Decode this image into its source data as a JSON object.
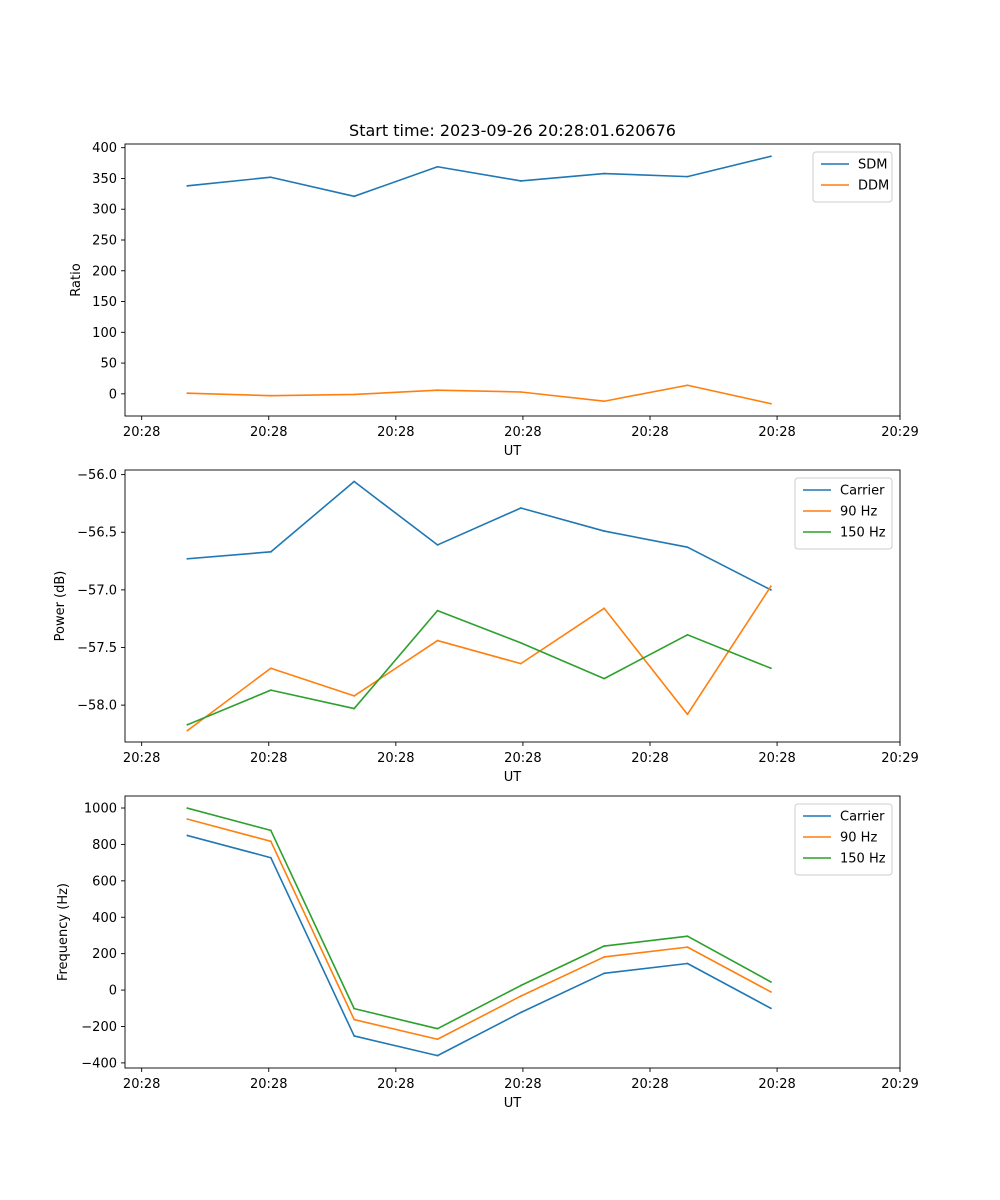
{
  "figure_title": "Start time: 2023-09-26 20:28:01.620676",
  "chart_data": [
    {
      "type": "line",
      "title": "Start time: 2023-09-26 20:28:01.620676",
      "xlabel": "UT",
      "ylabel": "Ratio",
      "x": [
        1,
        2,
        3,
        4,
        5,
        6,
        7,
        8
      ],
      "xlim": [
        0.25,
        9.55
      ],
      "xticks": [
        0.45,
        1.975,
        3.5,
        5.025,
        6.55,
        8.075,
        9.55
      ],
      "xtick_labels": [
        "20:28",
        "20:28",
        "20:28",
        "20:28",
        "20:28",
        "20:28",
        "20:29"
      ],
      "ylim": [
        -36,
        406
      ],
      "yticks": [
        0,
        50,
        100,
        150,
        200,
        250,
        300,
        350,
        400
      ],
      "ytick_labels": [
        "0",
        "50",
        "100",
        "150",
        "200",
        "250",
        "300",
        "350",
        "400"
      ],
      "legend_position": "top-right",
      "series": [
        {
          "name": "SDM",
          "color": "#1f77b4",
          "values": [
            338,
            352,
            321,
            369,
            346,
            358,
            353,
            386
          ]
        },
        {
          "name": "DDM",
          "color": "#ff7f0e",
          "values": [
            1,
            -3,
            -1,
            6,
            3,
            -12,
            14,
            -16
          ]
        }
      ]
    },
    {
      "type": "line",
      "xlabel": "UT",
      "ylabel": "Power (dB)",
      "x": [
        1,
        2,
        3,
        4,
        5,
        6,
        7,
        8
      ],
      "xlim": [
        0.25,
        9.55
      ],
      "xticks": [
        0.45,
        1.975,
        3.5,
        5.025,
        6.55,
        8.075,
        9.55
      ],
      "xtick_labels": [
        "20:28",
        "20:28",
        "20:28",
        "20:28",
        "20:28",
        "20:28",
        "20:29"
      ],
      "ylim": [
        -58.32,
        -55.96
      ],
      "yticks": [
        -58.0,
        -57.5,
        -57.0,
        -56.5,
        -56.0
      ],
      "ytick_labels": [
        "−58.0",
        "−57.5",
        "−57.0",
        "−56.5",
        "−56.0"
      ],
      "legend_position": "top-right",
      "series": [
        {
          "name": "Carrier",
          "color": "#1f77b4",
          "values": [
            -56.73,
            -56.67,
            -56.06,
            -56.61,
            -56.29,
            -56.49,
            -56.63,
            -57.0
          ]
        },
        {
          "name": "90 Hz",
          "color": "#ff7f0e",
          "values": [
            -58.22,
            -57.68,
            -57.92,
            -57.44,
            -57.64,
            -57.16,
            -58.08,
            -56.97
          ]
        },
        {
          "name": "150 Hz",
          "color": "#2ca02c",
          "values": [
            -58.17,
            -57.87,
            -58.03,
            -57.18,
            -57.46,
            -57.77,
            -57.39,
            -57.68
          ]
        }
      ]
    },
    {
      "type": "line",
      "xlabel": "UT",
      "ylabel": "Frequency (Hz)",
      "x": [
        1,
        2,
        3,
        4,
        5,
        6,
        7,
        8
      ],
      "xlim": [
        0.25,
        9.55
      ],
      "xticks": [
        0.45,
        1.975,
        3.5,
        5.025,
        6.55,
        8.075,
        9.55
      ],
      "xtick_labels": [
        "20:28",
        "20:28",
        "20:28",
        "20:28",
        "20:28",
        "20:28",
        "20:29"
      ],
      "ylim": [
        -428,
        1066
      ],
      "yticks": [
        -400,
        -200,
        0,
        200,
        400,
        600,
        800,
        1000
      ],
      "ytick_labels": [
        "−400",
        "−200",
        "0",
        "200",
        "400",
        "600",
        "800",
        "1000"
      ],
      "legend_position": "top-right",
      "series": [
        {
          "name": "Carrier",
          "color": "#1f77b4",
          "values": [
            849,
            727,
            -252,
            -360,
            -123,
            92,
            146,
            -100
          ]
        },
        {
          "name": "90 Hz",
          "color": "#ff7f0e",
          "values": [
            939,
            817,
            -162,
            -270,
            -33,
            182,
            236,
            -10
          ]
        },
        {
          "name": "150 Hz",
          "color": "#2ca02c",
          "values": [
            999,
            877,
            -102,
            -212,
            25,
            242,
            296,
            45
          ]
        }
      ]
    }
  ]
}
